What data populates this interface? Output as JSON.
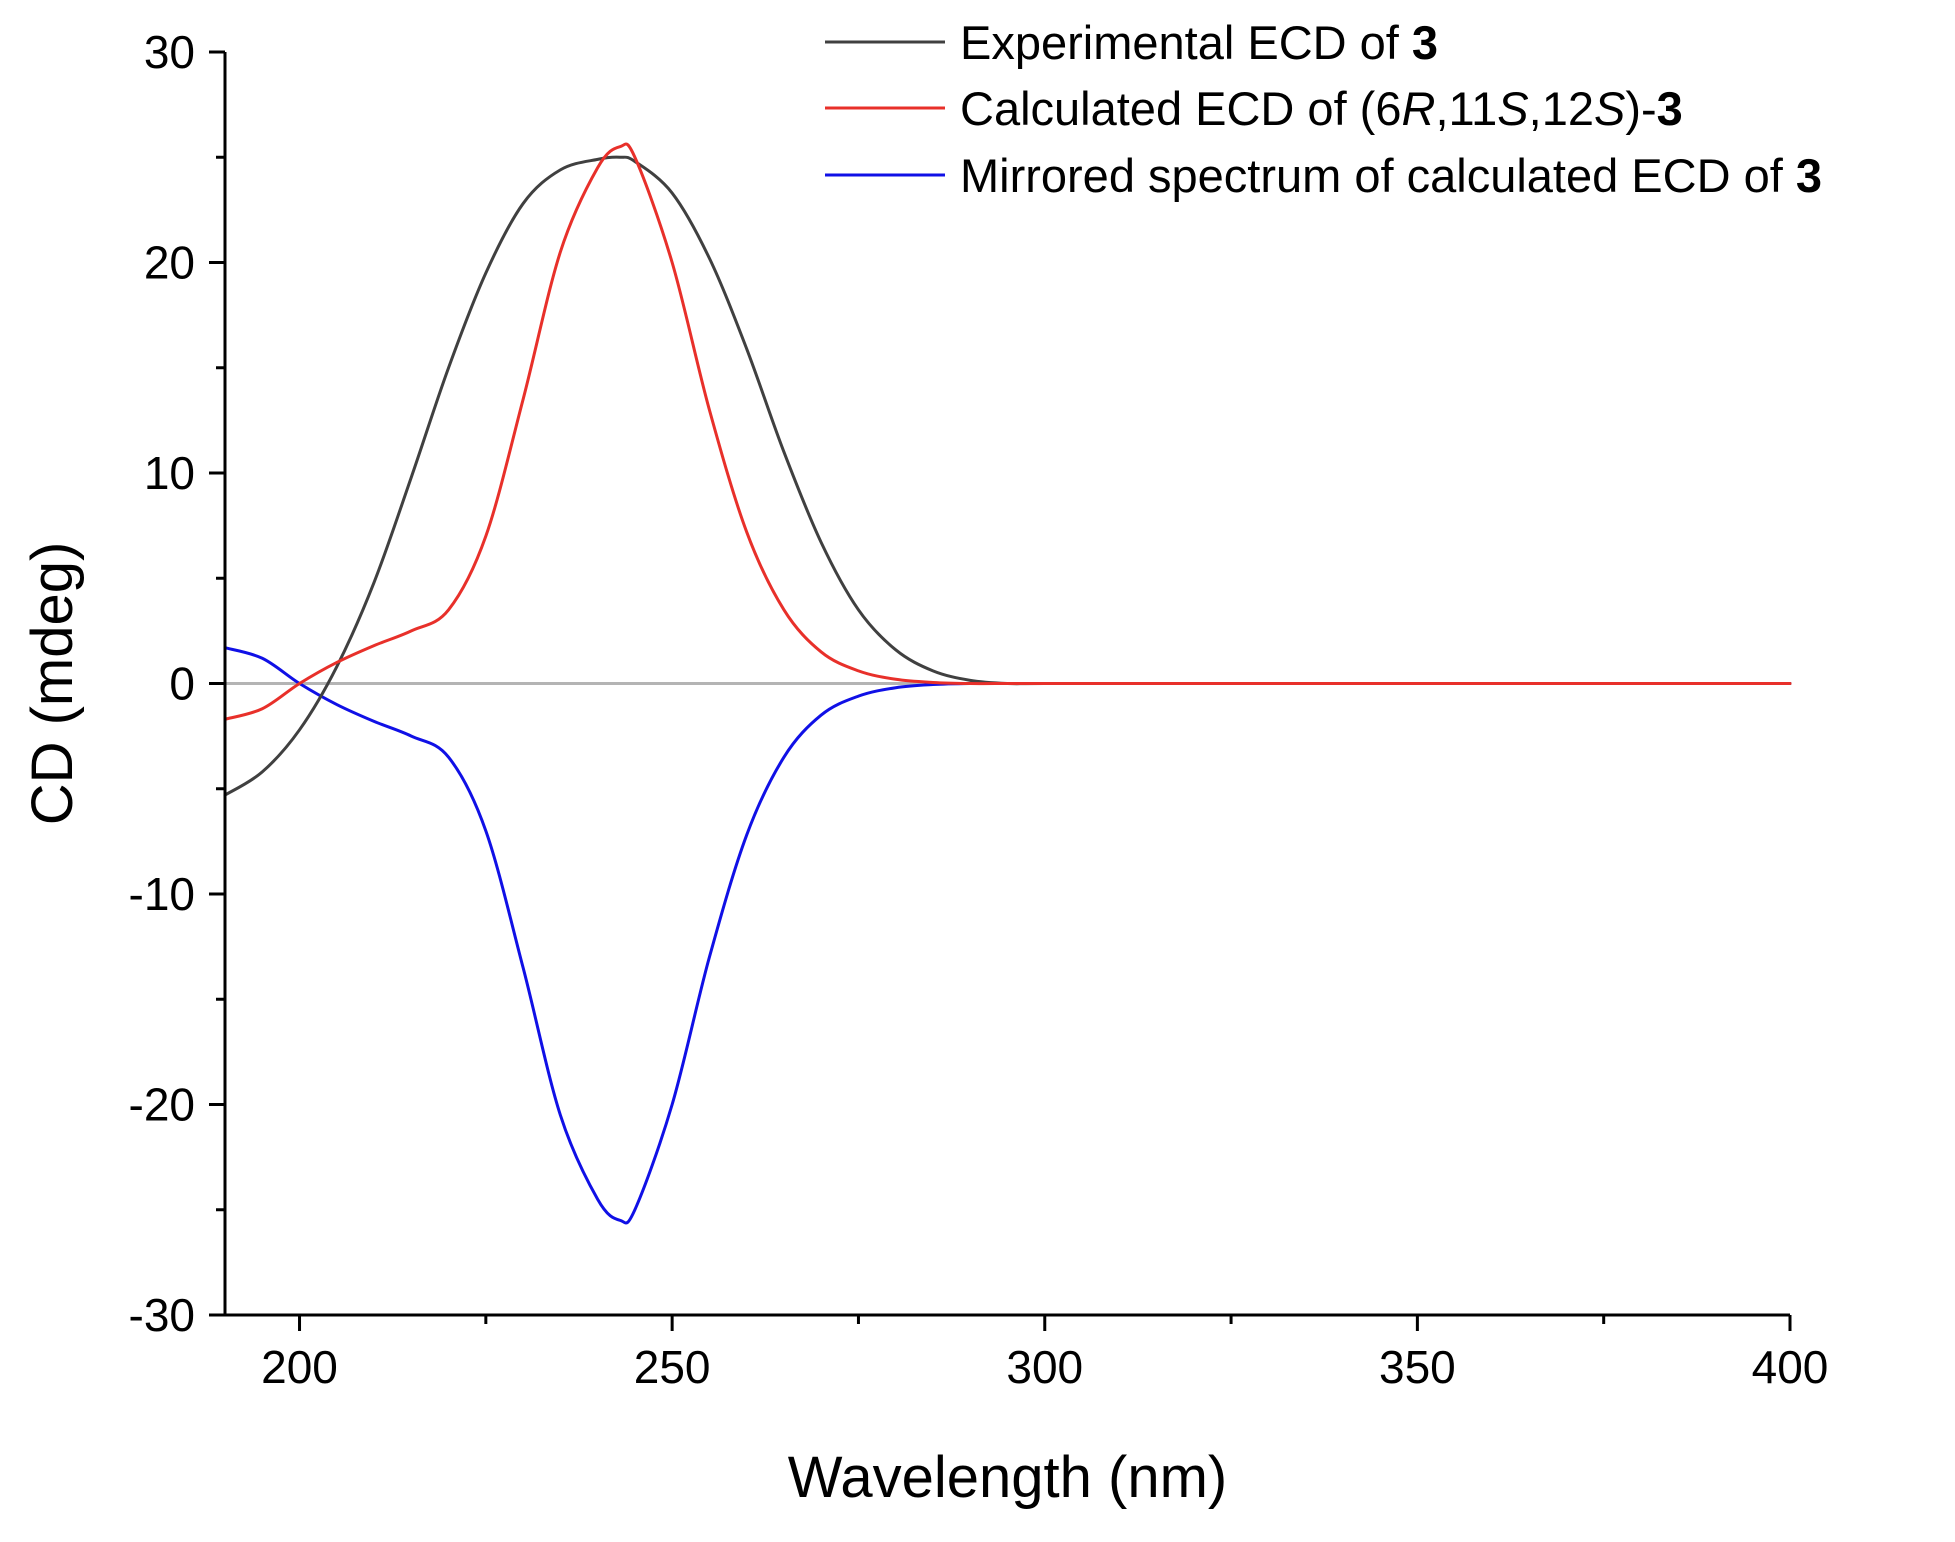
{
  "chart_data": {
    "type": "line",
    "title": "",
    "xlabel": "Wavelength (nm)",
    "ylabel": "CD (mdeg)",
    "xlim": [
      190,
      400
    ],
    "ylim": [
      -30,
      30
    ],
    "x_major_ticks": [
      200,
      250,
      300,
      350,
      400
    ],
    "x_tick_labels": [
      "200",
      "250",
      "300",
      "350",
      "400"
    ],
    "x_minor_ticks": [
      225,
      275,
      325,
      375
    ],
    "y_major_ticks": [
      -30,
      -20,
      -10,
      0,
      10,
      20,
      30
    ],
    "y_tick_labels": [
      "-30",
      "-20",
      "-10",
      "0",
      "10",
      "20",
      "30"
    ],
    "y_minor_ticks": [
      -25,
      -15,
      -5,
      5,
      15,
      25
    ],
    "grid": false,
    "legend_position": "top-right",
    "zero_line": {
      "color": "#b4b4b4"
    },
    "x": [
      190,
      195,
      200,
      205,
      210,
      215,
      220,
      225,
      230,
      235,
      240,
      243,
      245,
      250,
      255,
      260,
      265,
      270,
      275,
      280,
      285,
      290,
      295,
      300,
      320,
      350,
      400
    ],
    "series": [
      {
        "name": "Experimental ECD of 3",
        "legend_parts": [
          {
            "text": "Experimental ECD of ",
            "style": "normal"
          },
          {
            "text": "3",
            "style": "bold"
          }
        ],
        "color": "#404040",
        "values": [
          -5.3,
          -4.2,
          -2.2,
          0.8,
          4.8,
          9.8,
          15.0,
          19.5,
          22.8,
          24.4,
          24.9,
          25.0,
          24.8,
          23.3,
          20.2,
          15.9,
          11.0,
          6.7,
          3.5,
          1.6,
          0.6,
          0.15,
          0.0,
          0.0,
          0.0,
          0.0,
          0.0
        ]
      },
      {
        "name": "Calculated ECD of (6R,11S,12S)-3",
        "legend_parts": [
          {
            "text": "Calculated ECD of (6",
            "style": "normal"
          },
          {
            "text": "R",
            "style": "italic"
          },
          {
            "text": ",11",
            "style": "normal"
          },
          {
            "text": "S",
            "style": "italic"
          },
          {
            "text": ",12",
            "style": "normal"
          },
          {
            "text": "S",
            "style": "italic"
          },
          {
            "text": ")-",
            "style": "normal"
          },
          {
            "text": "3",
            "style": "bold"
          }
        ],
        "color": "#e8302a",
        "values": [
          -1.7,
          -1.2,
          0.0,
          1.0,
          1.8,
          2.5,
          3.5,
          7.0,
          13.5,
          20.5,
          24.5,
          25.5,
          25.0,
          20.0,
          13.0,
          7.2,
          3.5,
          1.5,
          0.6,
          0.2,
          0.05,
          0.0,
          0.0,
          0.0,
          0.0,
          0.0,
          0.0
        ]
      },
      {
        "name": "Mirrored spectrum of calculated ECD of 3",
        "legend_parts": [
          {
            "text": "Mirrored spectrum of calculated ECD of ",
            "style": "normal"
          },
          {
            "text": "3",
            "style": "bold"
          }
        ],
        "color": "#1010e6",
        "values": [
          1.7,
          1.2,
          0.0,
          -1.0,
          -1.8,
          -2.5,
          -3.5,
          -7.0,
          -13.5,
          -20.5,
          -24.5,
          -25.5,
          -25.0,
          -20.0,
          -13.0,
          -7.2,
          -3.5,
          -1.5,
          -0.6,
          -0.2,
          -0.05,
          0.0,
          0.0,
          0.0,
          0.0,
          0.0,
          0.0
        ]
      }
    ]
  }
}
